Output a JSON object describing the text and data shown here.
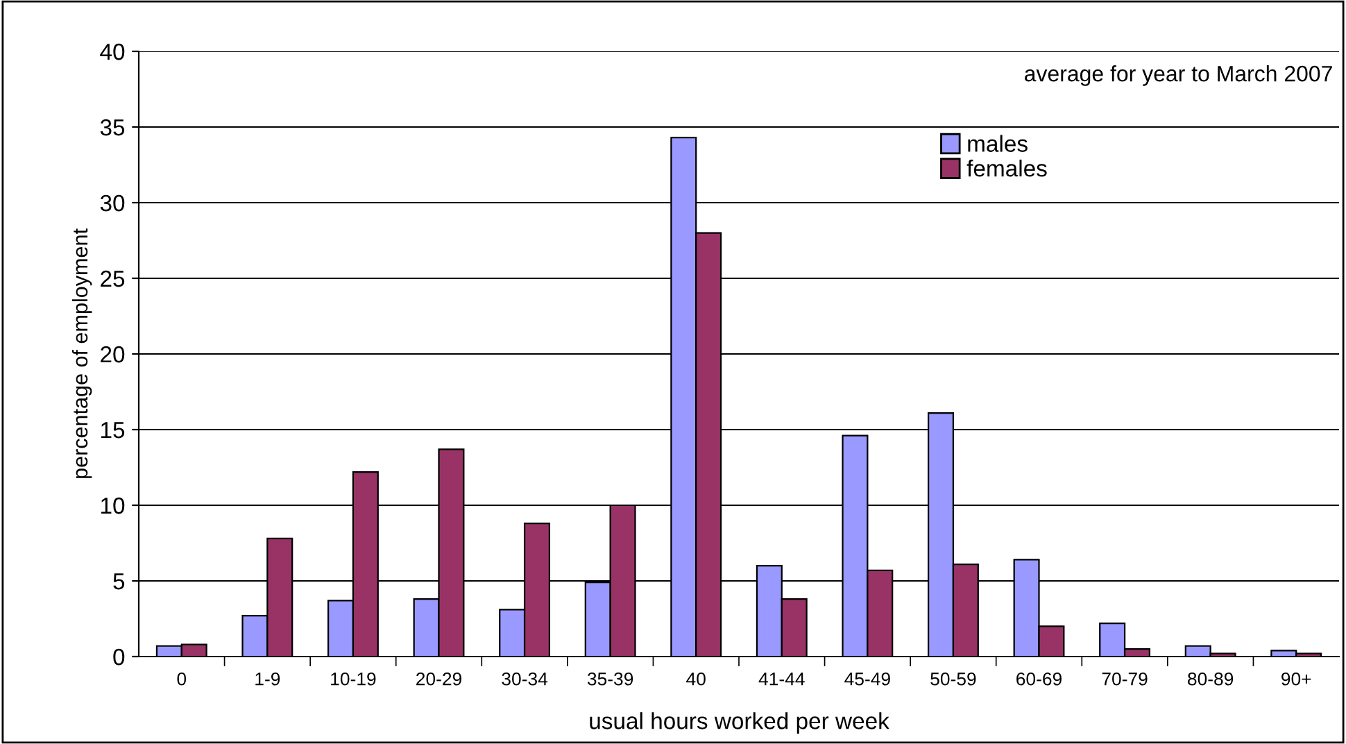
{
  "chart_data": {
    "type": "bar",
    "categories": [
      "0",
      "1-9",
      "10-19",
      "20-29",
      "30-34",
      "35-39",
      "40",
      "41-44",
      "45-49",
      "50-59",
      "60-69",
      "70-79",
      "80-89",
      "90+"
    ],
    "series": [
      {
        "name": "males",
        "color": "#9999ff",
        "values": [
          0.7,
          2.7,
          3.7,
          3.8,
          3.1,
          4.9,
          34.3,
          6.0,
          14.6,
          16.1,
          6.4,
          2.2,
          0.7,
          0.4
        ]
      },
      {
        "name": "females",
        "color": "#993366",
        "values": [
          0.8,
          7.8,
          12.2,
          13.7,
          8.8,
          10.0,
          28.0,
          3.8,
          5.7,
          6.1,
          2.0,
          0.5,
          0.2,
          0.2
        ]
      }
    ],
    "xlabel": "usual hours worked per week",
    "ylabel": "percentage of employment",
    "annotations": [
      "average for year to March 2007"
    ],
    "ylim": [
      0,
      40
    ],
    "yticks": [
      0,
      5,
      10,
      15,
      20,
      25,
      30,
      35,
      40
    ],
    "grid": "y",
    "legend": "top right"
  }
}
